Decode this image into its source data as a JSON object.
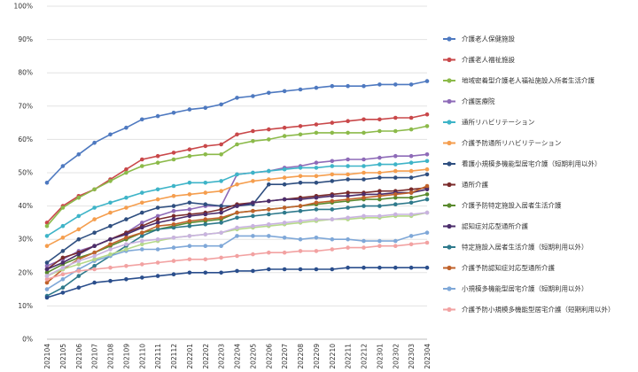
{
  "chart_data": {
    "type": "line",
    "ylim": [
      0,
      100
    ],
    "yticks": [
      "0%",
      "10%",
      "20%",
      "30%",
      "40%",
      "50%",
      "60%",
      "70%",
      "80%",
      "90%",
      "100%"
    ],
    "categories": [
      "202104",
      "202105",
      "202106",
      "202107",
      "202108",
      "202109",
      "202110",
      "202111",
      "202112",
      "202201",
      "202202",
      "202203",
      "202204",
      "202205",
      "202206",
      "202207",
      "202208",
      "202209",
      "202210",
      "202211",
      "202212",
      "202301",
      "202302",
      "202303",
      "202304"
    ],
    "grid": true,
    "legend_position": "right",
    "series": [
      {
        "name": "介護老人保健施設",
        "color": "#4e79c0",
        "values": [
          47,
          52,
          55.5,
          59,
          61.5,
          63.5,
          66,
          67,
          68,
          69,
          69.5,
          70.5,
          72.5,
          73,
          74,
          74.5,
          75,
          75.5,
          76,
          76,
          76,
          76.5,
          76.5,
          76.5,
          77.5
        ]
      },
      {
        "name": "介護老人福祉施設",
        "color": "#c9484a",
        "values": [
          35,
          40,
          43,
          45,
          48,
          51,
          54,
          55,
          56,
          57,
          58,
          58.5,
          61.5,
          62.5,
          63,
          63.5,
          64,
          64.5,
          65,
          65.5,
          66,
          66,
          66.5,
          66.5,
          67.5
        ]
      },
      {
        "name": "地域密着型介護老人福祉施設入所者生活介護",
        "color": "#8cba4a",
        "values": [
          34,
          39.5,
          42.5,
          45,
          47.5,
          50,
          52,
          53,
          54,
          55,
          55.5,
          55.5,
          58.5,
          59.5,
          60,
          61,
          61.5,
          62,
          62,
          62,
          62,
          62.5,
          62.5,
          63,
          64
        ]
      },
      {
        "name": "介護医療院",
        "color": "#8e6bb8",
        "values": [
          22,
          24,
          26.5,
          28,
          30,
          32,
          35,
          37,
          38.5,
          39,
          40,
          40,
          49.5,
          50,
          50.5,
          51.5,
          52,
          53,
          53.5,
          54,
          54,
          54.5,
          55,
          55,
          55.5
        ]
      },
      {
        "name": "通所リハビリテーション",
        "color": "#3eb4c8",
        "values": [
          31,
          34,
          37,
          39.5,
          41,
          42.5,
          44,
          45,
          46,
          47,
          47,
          47.5,
          49.5,
          50,
          50.5,
          51,
          51.5,
          51.5,
          52,
          52,
          52,
          52.5,
          52.5,
          53,
          53.5
        ]
      },
      {
        "name": "介護予防通所リハビリテーション",
        "color": "#f59e4e",
        "values": [
          28,
          30.5,
          33,
          36,
          38,
          39.5,
          41,
          42,
          43,
          43.5,
          44,
          44.5,
          46.5,
          47.5,
          48,
          48.5,
          49,
          49,
          49.5,
          49.5,
          50,
          50,
          50.5,
          50.5,
          51
        ]
      },
      {
        "name": "看護小規模多機能型居宅介護（短期利用以外）",
        "color": "#2f4f80",
        "values": [
          23,
          26.5,
          30,
          32,
          34,
          36,
          38,
          39.5,
          40,
          41,
          40.5,
          40,
          40,
          40.5,
          46.5,
          46.5,
          47,
          47,
          47.5,
          48,
          48,
          48.5,
          48.5,
          48.5,
          49.5
        ]
      },
      {
        "name": "通所介護",
        "color": "#7a2b2b",
        "values": [
          21,
          24.5,
          26,
          28,
          30,
          32,
          34,
          36,
          37,
          37.5,
          38,
          39,
          40.5,
          41,
          41.5,
          42,
          42.5,
          43,
          43.5,
          44,
          44,
          44.5,
          44.5,
          45,
          45.5
        ]
      },
      {
        "name": "介護予防特定施設入居者生活介護",
        "color": "#5a8a2e",
        "values": [
          20,
          22.5,
          24.5,
          26,
          28,
          30,
          32,
          33,
          34,
          35,
          35.5,
          36,
          38,
          38.5,
          39,
          39.5,
          40,
          40.5,
          41,
          41.5,
          42,
          42,
          42.5,
          42.5,
          43.5
        ]
      },
      {
        "name": "認知症対応型通所介護",
        "color": "#4b2d6b",
        "values": [
          21,
          23,
          25.5,
          28,
          30,
          31.5,
          33.5,
          35,
          36,
          37,
          37.5,
          38,
          40,
          41,
          41.5,
          42,
          42,
          42.5,
          43,
          43,
          43.5,
          43.5,
          44,
          44,
          45
        ]
      },
      {
        "name": "特定施設入居者生活介護（短期利用以外）",
        "color": "#2f7a8c",
        "values": [
          13,
          15.5,
          19,
          22,
          25,
          28,
          31,
          33,
          33.5,
          34,
          34.5,
          35,
          36.5,
          37,
          37.5,
          38,
          38.5,
          39,
          39,
          39.5,
          40,
          40,
          40.5,
          41,
          42
        ]
      },
      {
        "name": "介護予防認知症対応型通所介護",
        "color": "#c0622b",
        "values": [
          17,
          21,
          24,
          26,
          28.5,
          30.5,
          32,
          34,
          34.5,
          35.5,
          36,
          36.5,
          38,
          38.5,
          39,
          39.5,
          40,
          41,
          41.5,
          42,
          42.5,
          43,
          43.5,
          44,
          46
        ]
      },
      {
        "name": "小規模多機能型居宅介護（短期利用以外）",
        "color": "#7fa8d8",
        "values": [
          15,
          18,
          21,
          23.5,
          25,
          26.5,
          27,
          27,
          27.5,
          28,
          28,
          28,
          31,
          31,
          31,
          30.5,
          30,
          30.5,
          30,
          30,
          29.5,
          29.5,
          29.5,
          31,
          32
        ]
      },
      {
        "name": "介護予防小規模多機能型居宅介護（短期利用以外）",
        "color": "#f2a2a2",
        "values": [
          18,
          19.5,
          20.5,
          21,
          21.5,
          22,
          22.5,
          23,
          23.5,
          24,
          24,
          24.5,
          25,
          25.5,
          26,
          26,
          26.5,
          26.5,
          27,
          27.5,
          27.5,
          28,
          28,
          28.5,
          29
        ]
      },
      {
        "name": "",
        "color": "#b6d98a",
        "values": [
          19,
          21,
          22.5,
          24,
          25.5,
          27,
          28.5,
          29.5,
          30.5,
          31,
          31.5,
          32,
          33,
          33.5,
          34,
          34.5,
          35,
          35.5,
          36,
          36,
          36.5,
          36.5,
          37,
          37,
          38
        ]
      },
      {
        "name": "",
        "color": "#c9b3e0",
        "values": [
          19,
          21.5,
          23.5,
          25,
          27,
          28.5,
          29.5,
          30,
          30.5,
          31,
          31.5,
          32,
          33.5,
          34,
          34.5,
          35,
          35.5,
          36,
          36,
          36.5,
          37,
          37,
          37.5,
          37.5,
          38
        ]
      },
      {
        "name": "",
        "color": "#2a4e8c",
        "values": [
          12.5,
          14,
          15.5,
          17,
          17.5,
          18,
          18.5,
          19,
          19.5,
          20,
          20,
          20,
          20.5,
          20.5,
          21,
          21,
          21,
          21,
          21,
          21.5,
          21.5,
          21.5,
          21.5,
          21.5,
          21.5
        ]
      }
    ]
  }
}
